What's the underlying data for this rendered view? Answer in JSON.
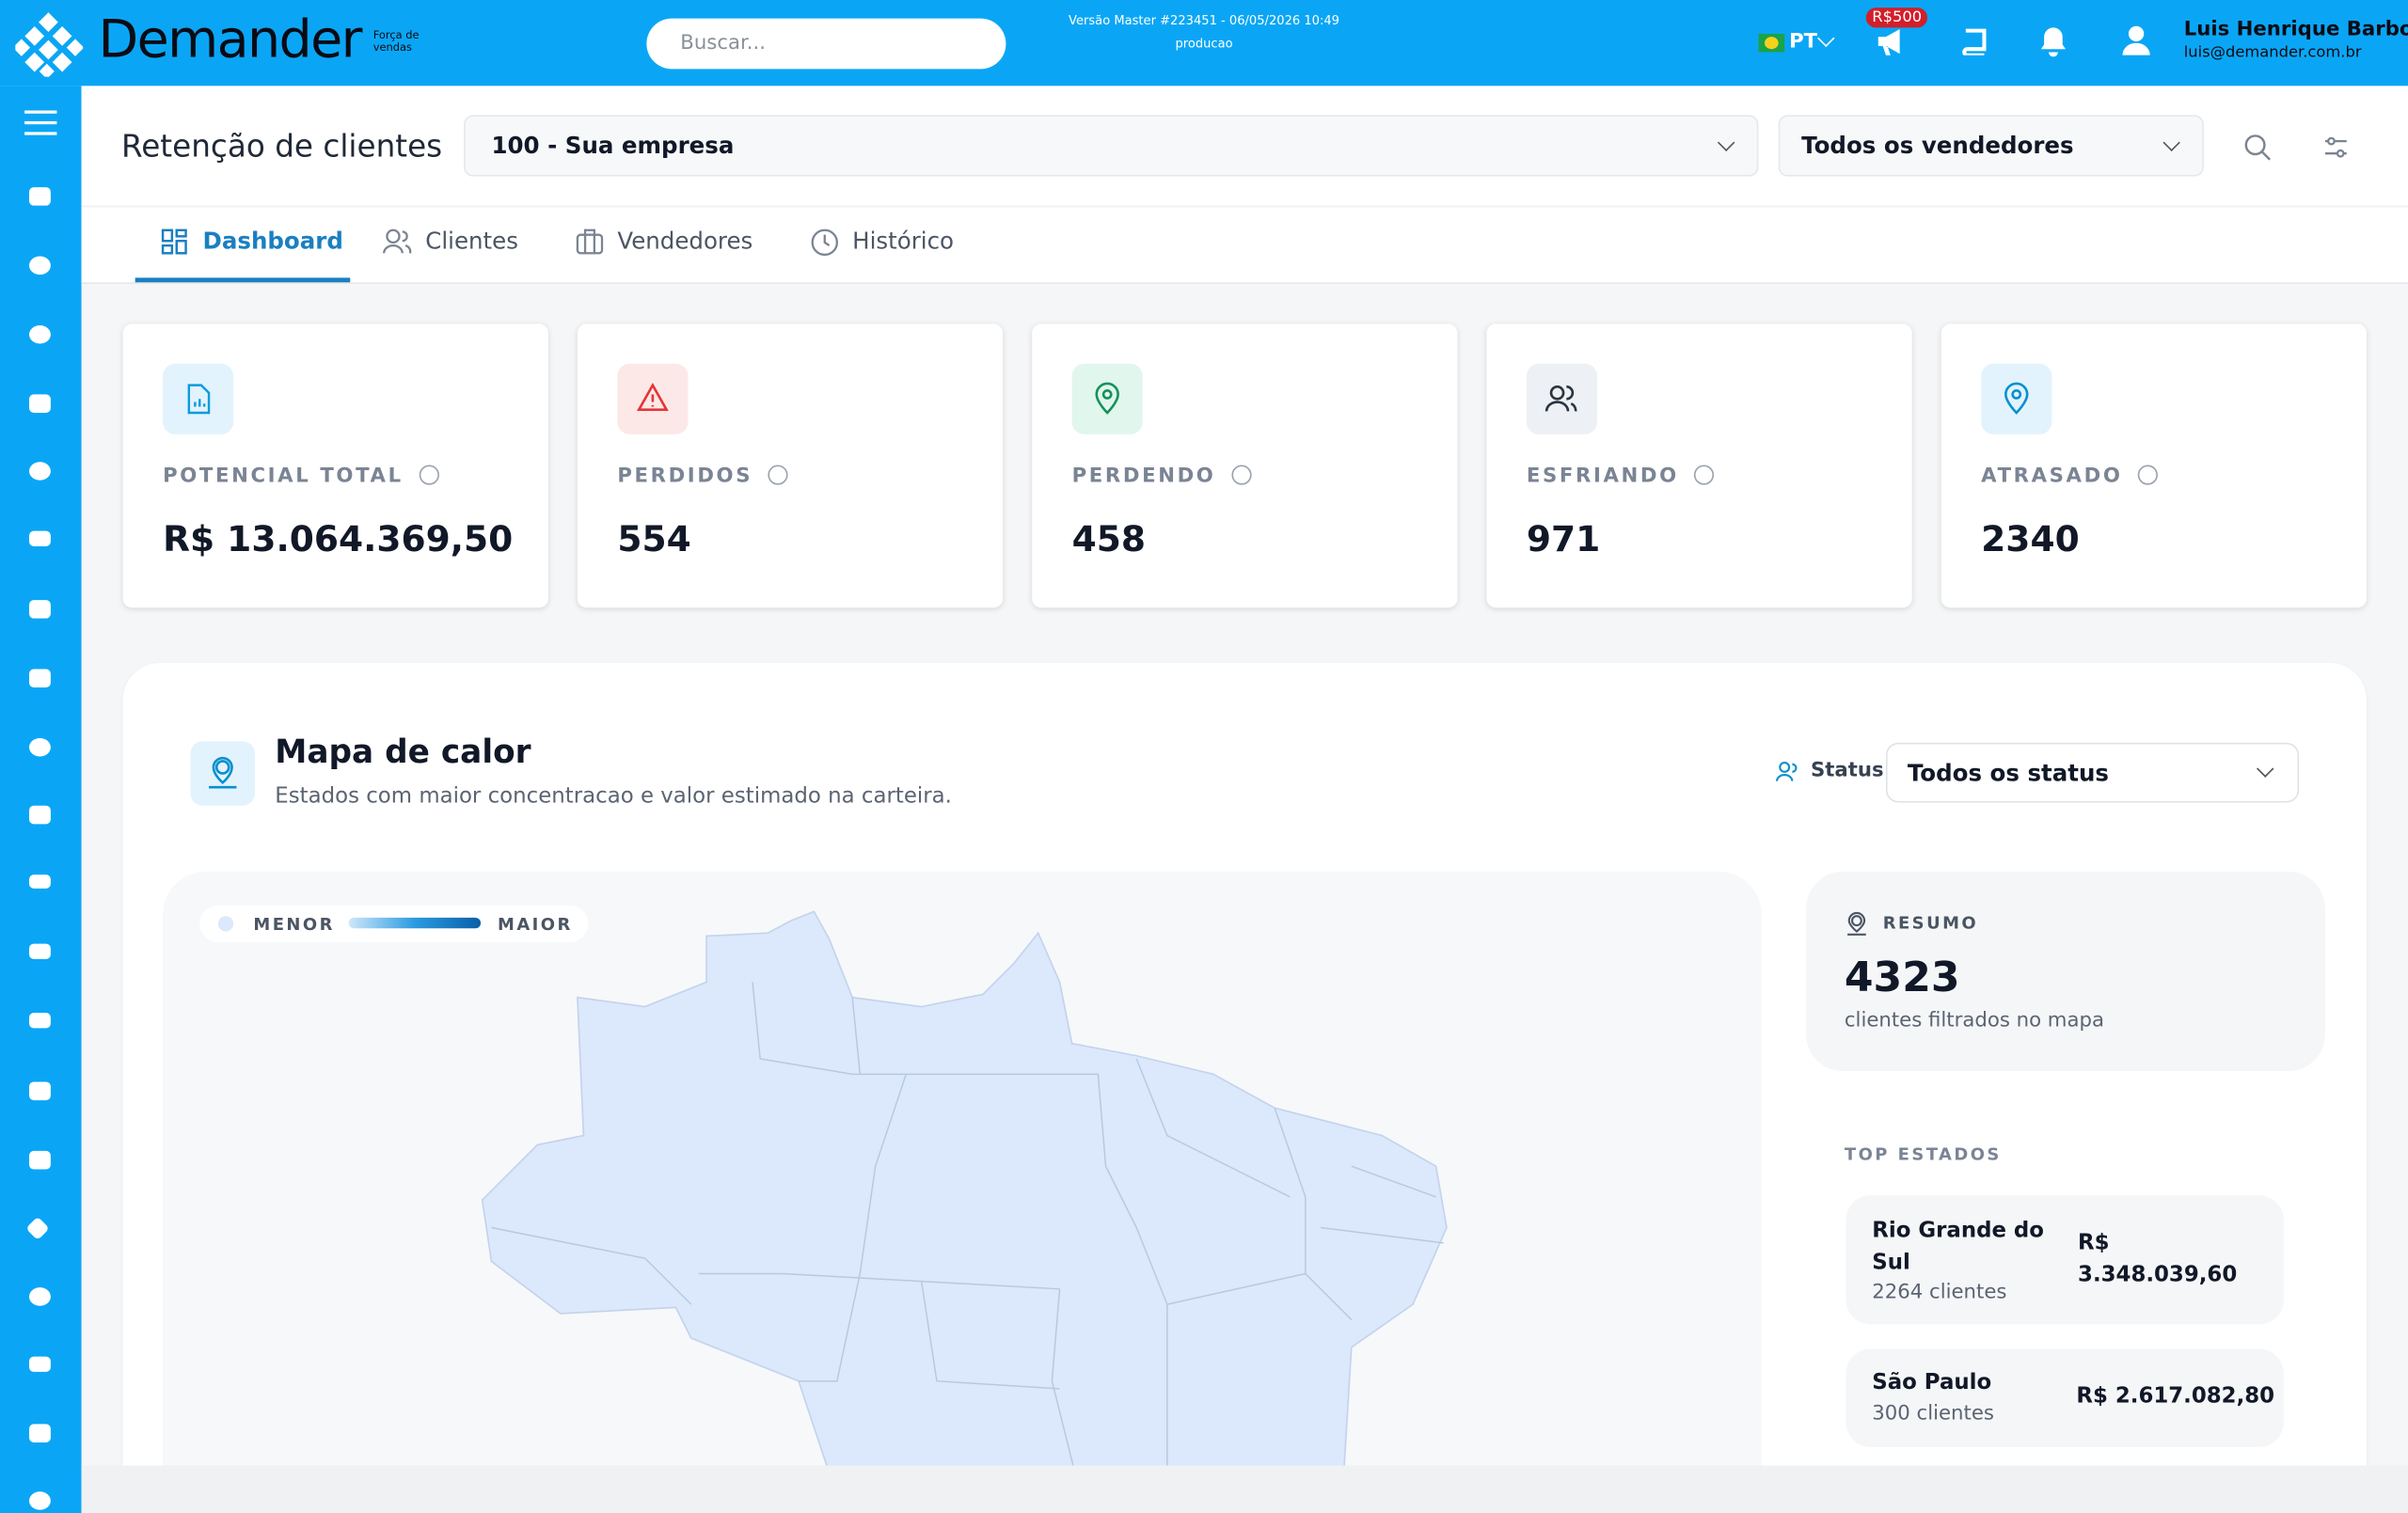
{
  "header": {
    "brand": "Demander",
    "brand_tagline": "Força de vendas",
    "search_placeholder": "Buscar...",
    "version": "Versão Master #223451 - 06/05/2026 10:49",
    "environment": "producao",
    "language": "PT",
    "promo_badge": "R$500",
    "user_name": "Luis Henrique Barbon",
    "user_email": "luis@demander.com.br"
  },
  "page": {
    "title": "Retenção de clientes",
    "company_select": "100 - Sua empresa",
    "seller_select": "Todos os vendedores"
  },
  "tabs": [
    "Dashboard",
    "Clientes",
    "Vendedores",
    "Histórico"
  ],
  "cards": [
    {
      "label": "POTENCIAL TOTAL",
      "value": "R$ 13.064.369,50"
    },
    {
      "label": "PERDIDOS",
      "value": "554"
    },
    {
      "label": "PERDENDO",
      "value": "458"
    },
    {
      "label": "ESFRIANDO",
      "value": "971"
    },
    {
      "label": "ATRASADO",
      "value": "2340"
    }
  ],
  "heatmap": {
    "title": "Mapa de calor",
    "subtitle": "Estados com maior concentracao e valor estimado na carteira.",
    "status_label": "Status",
    "status_select": "Todos os status",
    "legend_min": "MENOR",
    "legend_max": "MAIOR"
  },
  "summary": {
    "label": "RESUMO",
    "value": "4323",
    "caption": "clientes filtrados no mapa"
  },
  "top_states": {
    "label": "TOP ESTADOS",
    "items": [
      {
        "name": "Rio Grande do Sul",
        "clients": "2264 clientes",
        "value": "R$ 3.348.039,60"
      },
      {
        "name": "São Paulo",
        "clients": "300 clientes",
        "value": "R$ 2.617.082,80"
      }
    ]
  }
}
